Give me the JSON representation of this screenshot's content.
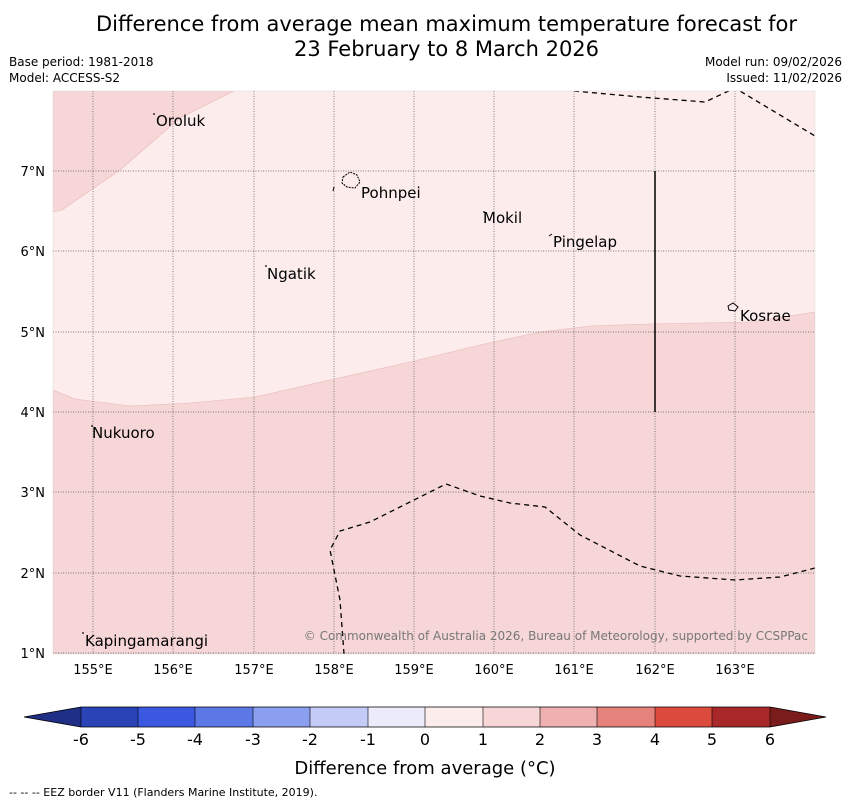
{
  "title": {
    "line1": "Difference from average mean maximum temperature forecast for",
    "line2": "23 February to 8 March 2026"
  },
  "meta_left": {
    "base_period": "Base period: 1981-2018",
    "model": "Model: ACCESS-S2"
  },
  "meta_right": {
    "model_run": "Model run: 09/02/2026",
    "issued": "Issued: 11/02/2026"
  },
  "lat_labels": [
    "7°N",
    "6°N",
    "5°N",
    "4°N",
    "3°N",
    "2°N",
    "1°N"
  ],
  "lon_labels": [
    "155°E",
    "156°E",
    "157°E",
    "158°E",
    "159°E",
    "160°E",
    "161°E",
    "162°E",
    "163°E"
  ],
  "places": {
    "oroluk": "Oroluk",
    "pohnpei": "Pohnpei",
    "mokil": "Mokil",
    "pingelap": "Pingelap",
    "ngatik": "Ngatik",
    "kosrae": "Kosrae",
    "nukuoro": "Nukuoro",
    "kapingamarangi": "Kapingamarangi"
  },
  "copyright": "© Commonwealth of Australia 2026, Bureau of Meteorology, supported by CCSPPac",
  "colorbar": {
    "ticks": [
      "-6",
      "-5",
      "-4",
      "-3",
      "-2",
      "-1",
      "0",
      "1",
      "2",
      "3",
      "4",
      "5",
      "6"
    ],
    "title": "Difference from average (°C)",
    "colors": {
      "below_min": "#1f2f85",
      "c_m6": "#2a44b8",
      "c_m5": "#3a58e0",
      "c_m4": "#5c78e6",
      "c_m3": "#8a9ff0",
      "c_m2": "#c4cbf6",
      "c_m1": "#ebebfb",
      "c_0": "#fcecec",
      "c_1": "#f6d6d6",
      "c_2": "#eeb0b0",
      "c_3": "#e6827c",
      "c_4": "#dc4a3e",
      "c_5": "#a8282a",
      "above_max": "#7a1c1c"
    }
  },
  "footer": "--  --  -- EEZ border V11 (Flanders Marine Institute, 2019)."
}
